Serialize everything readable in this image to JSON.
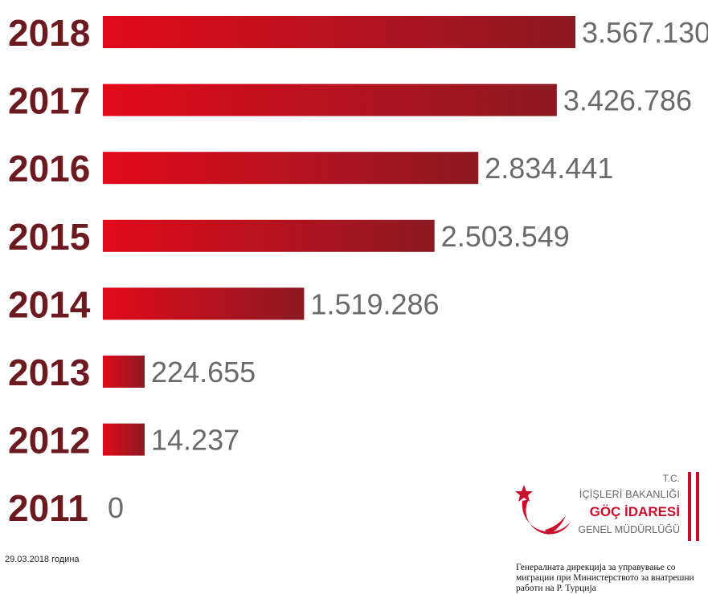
{
  "chart_data": {
    "type": "bar",
    "orientation": "horizontal",
    "categories": [
      "2018",
      "2017",
      "2016",
      "2015",
      "2014",
      "2013",
      "2012",
      "2011"
    ],
    "values": [
      3567130,
      3426786,
      2834441,
      2503549,
      1519286,
      224655,
      14237,
      0
    ],
    "value_labels": [
      "3.567.130*",
      "3.426.786",
      "2.834.441",
      "2.503.549",
      "1.519.286",
      "224.655",
      "14.237",
      "0"
    ],
    "bar_gradient": [
      "#e10a1a",
      "#8c1a22"
    ],
    "category_label_color": "#6b1a1f",
    "value_label_color": "#6a6a6a"
  },
  "footer": {
    "date_note": "29.03.2018 година",
    "source_note": "Генералната дирекција за управување со миграции при Министерството за внатрешни работи на Р. Турција"
  },
  "logo": {
    "line1": "T.C.",
    "line2": "İÇİŞLERİ BAKANLIĞI",
    "line3": "GÖÇ İDARESİ",
    "line4": "GENEL MÜDÜRLÜĞÜ",
    "color": "#c8102e"
  }
}
